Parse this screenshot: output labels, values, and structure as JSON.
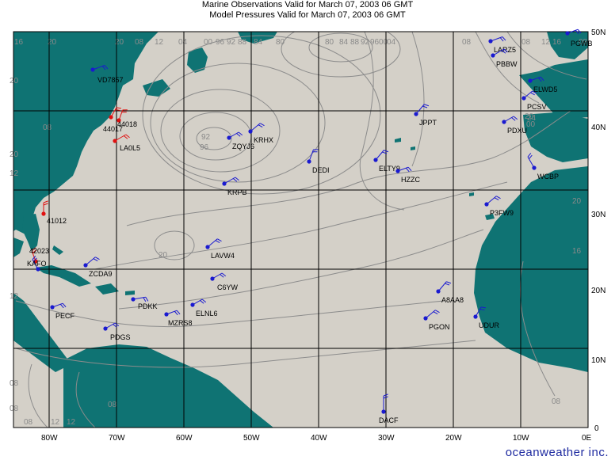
{
  "header": {
    "line1": "Marine Observations Valid for March 07, 2003 06 GMT",
    "line2": "Model Pressures Valid for March 07, 2003 06 GMT"
  },
  "colors": {
    "ocean": "#d4d0c8",
    "land": "#0f7373",
    "grid": "#000000",
    "isobar": "#8c8c8c",
    "ship_obs": "#1a1ad0",
    "buoy_obs": "#e01010"
  },
  "axes": {
    "lat_labels": [
      "0",
      "10N",
      "20N",
      "30N",
      "40N",
      "50N"
    ],
    "lon_labels": [
      "80W",
      "70W",
      "60W",
      "50W",
      "40W",
      "30W",
      "20W",
      "10W",
      "0E"
    ]
  },
  "stations": [
    {
      "id": "VD7857",
      "color": "blue"
    },
    {
      "id": "44017",
      "color": "red"
    },
    {
      "id": "44018",
      "color": "red"
    },
    {
      "id": "LA0L5",
      "color": "red"
    },
    {
      "id": "41012",
      "color": "red"
    },
    {
      "id": "42023",
      "color": "red"
    },
    {
      "id": "KAFO",
      "color": "blue"
    },
    {
      "id": "ZCDA9",
      "color": "blue"
    },
    {
      "id": "PECF",
      "color": "blue"
    },
    {
      "id": "PDKK",
      "color": "blue"
    },
    {
      "id": "PDGS",
      "color": "blue"
    },
    {
      "id": "MZRS8",
      "color": "blue"
    },
    {
      "id": "ELNL6",
      "color": "blue"
    },
    {
      "id": "C6YW",
      "color": "blue"
    },
    {
      "id": "LAVW4",
      "color": "blue"
    },
    {
      "id": "KRPB",
      "color": "blue"
    },
    {
      "id": "ZQYJ6",
      "color": "blue"
    },
    {
      "id": "KRHX",
      "color": "blue"
    },
    {
      "id": "DEDI",
      "color": "blue"
    },
    {
      "id": "ELTY9",
      "color": "blue"
    },
    {
      "id": "HZZC",
      "color": "blue"
    },
    {
      "id": "JPPT",
      "color": "blue"
    },
    {
      "id": "LARZ5",
      "color": "blue"
    },
    {
      "id": "PBBW",
      "color": "blue"
    },
    {
      "id": "PGWB",
      "color": "blue"
    },
    {
      "id": "ELWD5",
      "color": "blue"
    },
    {
      "id": "PCSV",
      "color": "blue"
    },
    {
      "id": "PDXU",
      "color": "blue"
    },
    {
      "id": "WCBP",
      "color": "blue"
    },
    {
      "id": "P3FW9",
      "color": "blue"
    },
    {
      "id": "A8AA8",
      "color": "blue"
    },
    {
      "id": "PGON",
      "color": "blue"
    },
    {
      "id": "UDUR",
      "color": "blue"
    },
    {
      "id": "DACF",
      "color": "blue"
    }
  ],
  "isobar_labels": [
    "16",
    "20",
    "20",
    "20",
    "20",
    "08",
    "12",
    "04",
    "00",
    "96",
    "92",
    "88",
    "84",
    "80",
    "80",
    "84",
    "88",
    "92",
    "96",
    "00",
    "04",
    "08",
    "08",
    "08",
    "12",
    "16",
    "92",
    "96",
    "00",
    "20",
    "24",
    "20",
    "16",
    "12",
    "20",
    "12",
    "08",
    "08",
    "08",
    "12",
    "12",
    "08",
    "08",
    "08"
  ],
  "branding": "oceanweather inc."
}
